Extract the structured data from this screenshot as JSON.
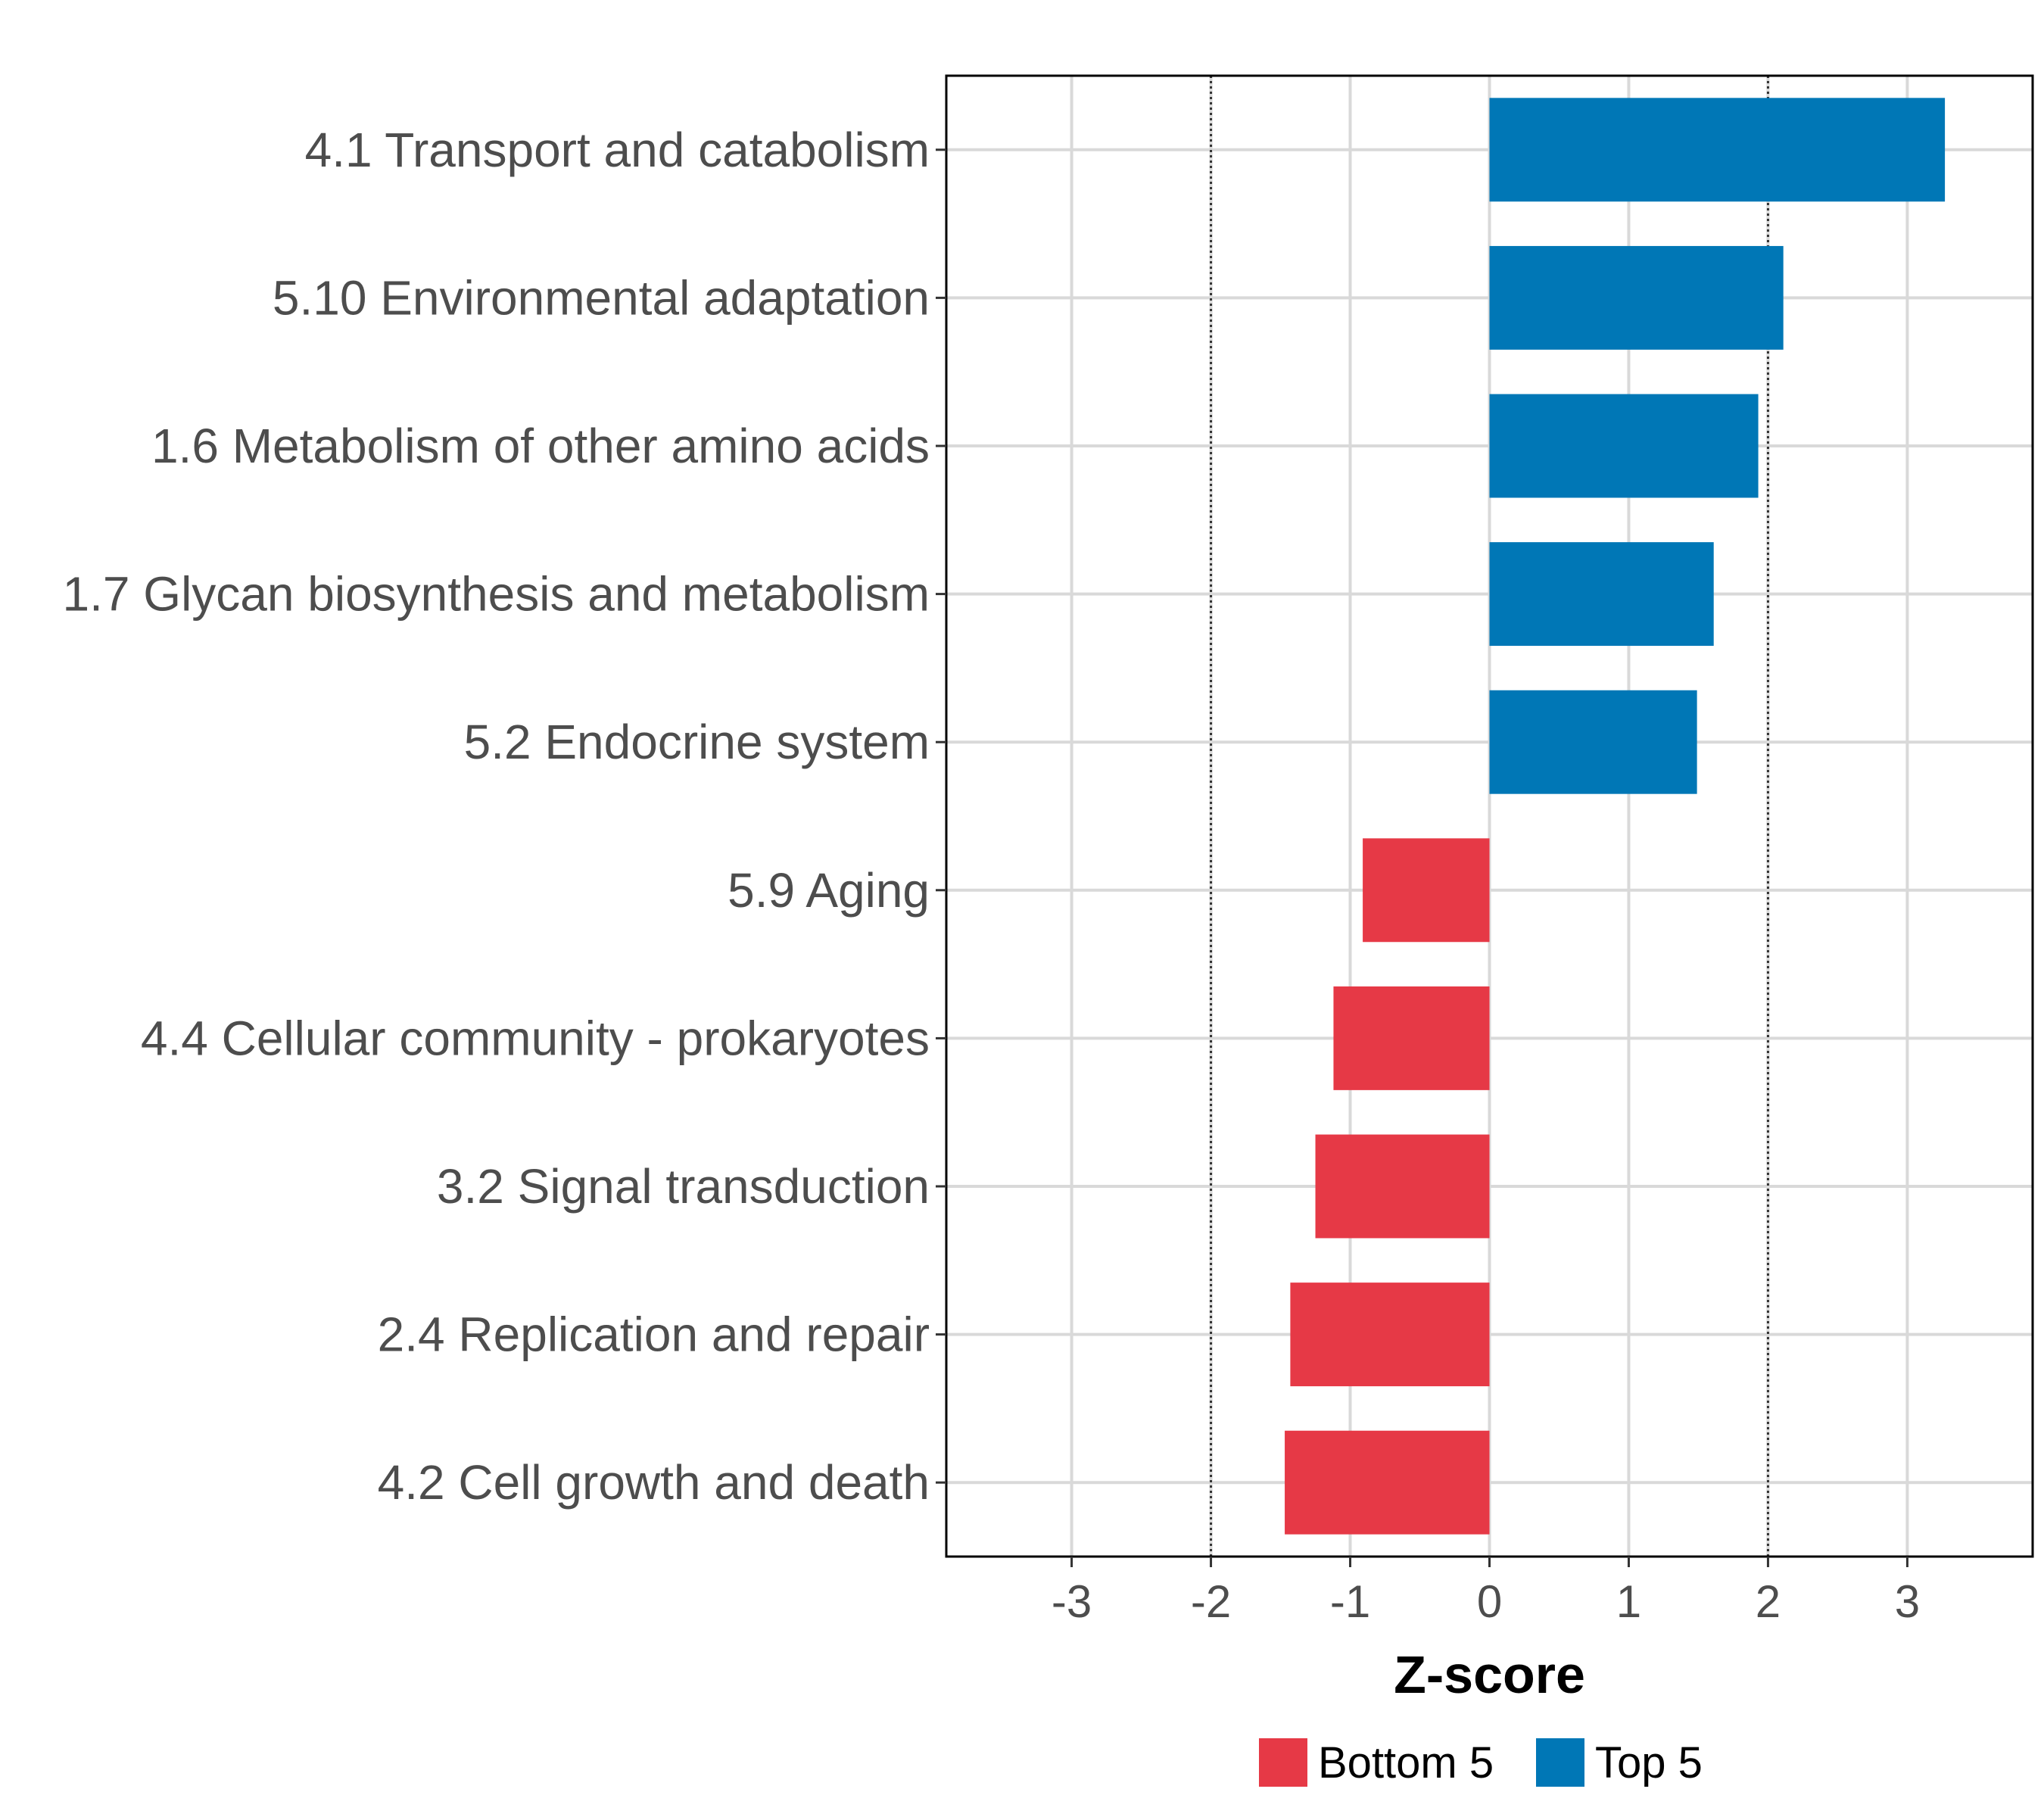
{
  "chart_data": {
    "type": "bar",
    "orientation": "horizontal",
    "title": "",
    "xlabel": "Z-score",
    "ylabel": "",
    "xlim": [
      -3.9,
      3.9
    ],
    "xticks": [
      -3,
      -2,
      -1,
      0,
      1,
      2,
      3
    ],
    "xtick_labels": [
      "-3",
      "-2",
      "-1",
      "0",
      "1",
      "2",
      "3"
    ],
    "reference_lines": [
      -2,
      2
    ],
    "grid": true,
    "legend_position": "bottom",
    "categories": [
      "4.1 Transport and catabolism",
      "5.10 Environmental adaptation",
      "1.6 Metabolism of other amino acids",
      "1.7 Glycan biosynthesis and metabolism",
      "5.2 Endocrine system",
      "5.9 Aging",
      "4.4 Cellular community - prokaryotes",
      "3.2 Signal transduction",
      "2.4 Replication and repair",
      "4.2 Cell growth and death"
    ],
    "values": [
      3.27,
      2.11,
      1.93,
      1.61,
      1.49,
      -0.91,
      -1.12,
      -1.25,
      -1.43,
      -1.47
    ],
    "groups": [
      "Top 5",
      "Top 5",
      "Top 5",
      "Top 5",
      "Top 5",
      "Bottom 5",
      "Bottom 5",
      "Bottom 5",
      "Bottom 5",
      "Bottom 5"
    ],
    "legend": [
      {
        "name": "Bottom 5",
        "color": "#e63946"
      },
      {
        "name": "Top 5",
        "color": "#0077b6"
      }
    ]
  }
}
